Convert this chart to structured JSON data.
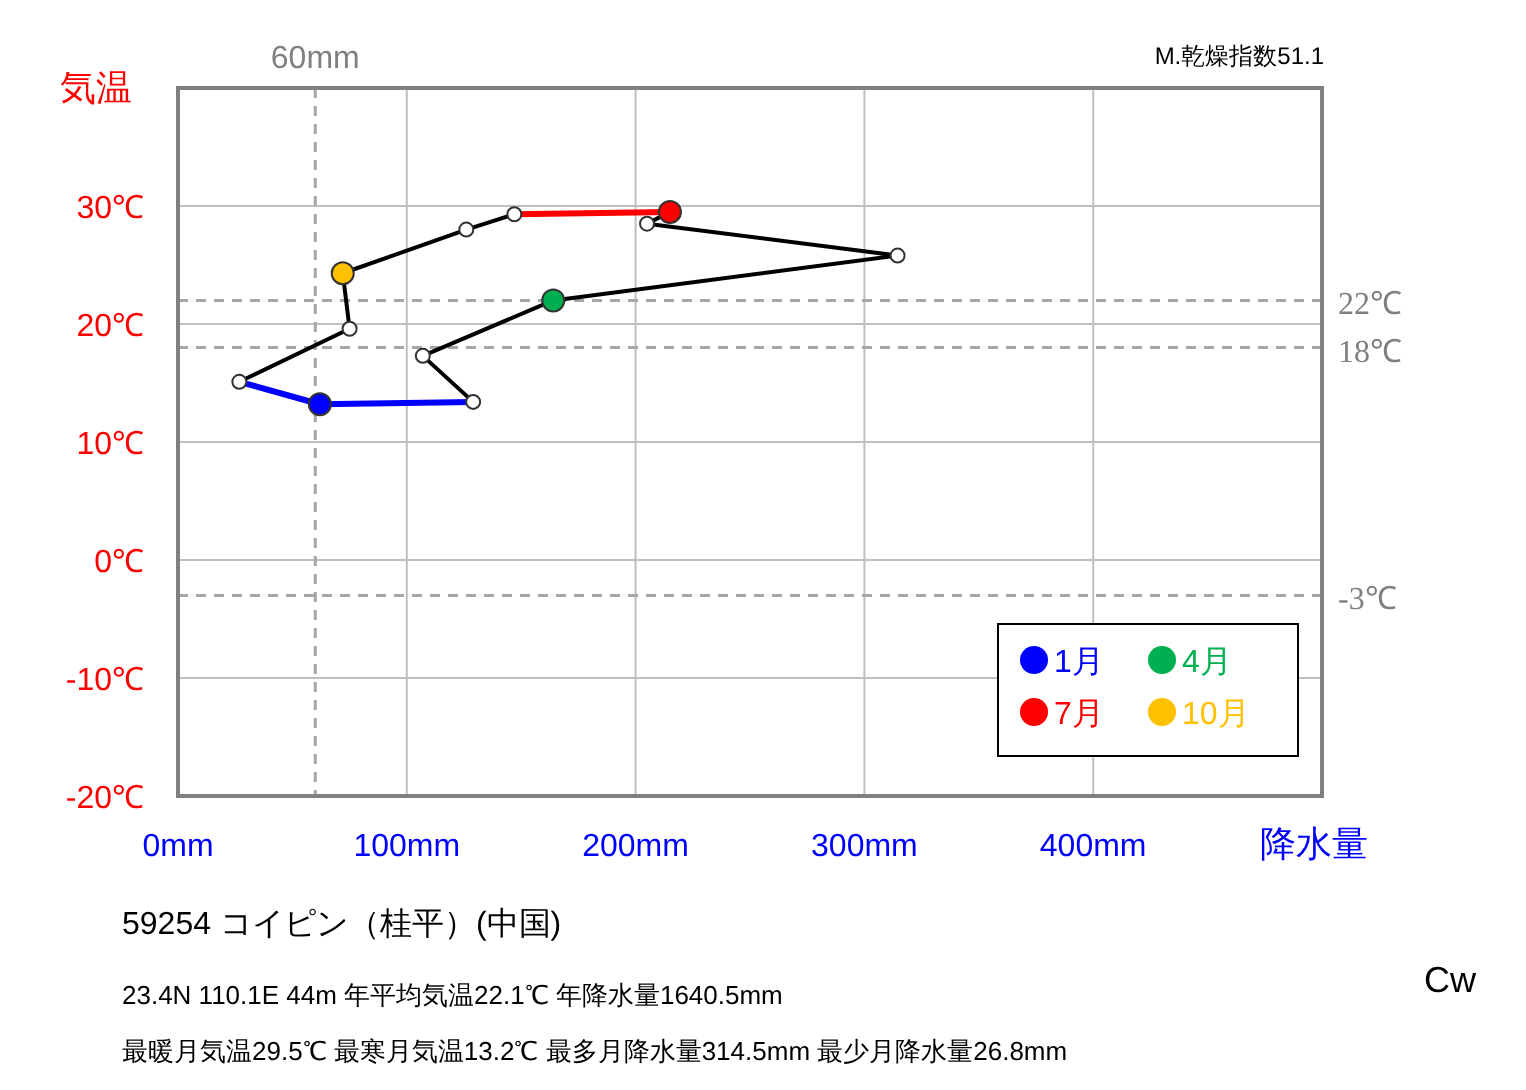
{
  "chart_data": {
    "type": "line",
    "xlabel": "降水量",
    "ylabel": "気温",
    "xlim": [
      0,
      500
    ],
    "ylim": [
      -20,
      40
    ],
    "xticks": [
      {
        "value": 0,
        "label": "0mm"
      },
      {
        "value": 100,
        "label": "100mm"
      },
      {
        "value": 200,
        "label": "200mm"
      },
      {
        "value": 300,
        "label": "300mm"
      },
      {
        "value": 400,
        "label": "400mm"
      },
      {
        "value": 500,
        "label": null
      }
    ],
    "yticks": [
      {
        "value": -20,
        "label": "-20℃"
      },
      {
        "value": -10,
        "label": "-10℃"
      },
      {
        "value": 0,
        "label": "0℃"
      },
      {
        "value": 10,
        "label": "10℃"
      },
      {
        "value": 20,
        "label": "20℃"
      },
      {
        "value": 30,
        "label": "30℃"
      },
      {
        "value": 40,
        "label": null
      }
    ],
    "grid": true,
    "legend": "bottom right",
    "ref_lines": [
      {
        "axis": "x",
        "value": 60,
        "label": "60mm",
        "color": "#a6a6a6",
        "line_style": "dashed"
      },
      {
        "axis": "y",
        "value": 22,
        "label": "22℃",
        "color": "#a6a6a6",
        "line_style": "dashed"
      },
      {
        "axis": "y",
        "value": 18,
        "label": "18℃",
        "color": "#a6a6a6",
        "line_style": "dashed"
      },
      {
        "axis": "y",
        "value": -3,
        "label": "-3℃",
        "color": "#a6a6a6",
        "line_style": "dashed"
      }
    ],
    "series": [
      {
        "color": "#000000",
        "marker": "none",
        "x": [
          129,
          107,
          164,
          314.5,
          205,
          215
        ],
        "values": [
          13.4,
          17.3,
          22.0,
          25.8,
          28.5,
          29.5
        ]
      },
      {
        "color": "#000000",
        "marker": "none",
        "x": [
          147,
          126,
          72,
          75,
          26.8
        ],
        "values": [
          29.3,
          28.0,
          24.3,
          19.6,
          15.1
        ]
      },
      {
        "color": "#0000ff",
        "marker": "none",
        "x": [
          26.8,
          62,
          129
        ],
        "values": [
          15.1,
          13.2,
          13.4
        ]
      },
      {
        "color": "#ff0000",
        "marker": "none",
        "x": [
          147,
          215
        ],
        "values": [
          29.3,
          29.5
        ]
      },
      {
        "type": "scatter",
        "color": "#ffffff",
        "marker": "circle",
        "x": [
          129,
          107,
          314.5,
          205,
          147,
          126,
          75,
          26.8
        ],
        "values": [
          13.4,
          17.3,
          25.8,
          28.5,
          29.3,
          28.0,
          19.6,
          15.1
        ]
      },
      {
        "type": "scatter",
        "name": "1月",
        "color": "#0000ff",
        "marker": "circle",
        "x": [
          62
        ],
        "values": [
          13.2
        ]
      },
      {
        "type": "scatter",
        "name": "4月",
        "color": "#00b050",
        "marker": "circle",
        "x": [
          164
        ],
        "values": [
          22.0
        ]
      },
      {
        "type": "scatter",
        "name": "7月",
        "color": "#ff0000",
        "marker": "circle",
        "x": [
          215
        ],
        "values": [
          29.5
        ]
      },
      {
        "type": "scatter",
        "name": "10月",
        "color": "#ffc000",
        "marker": "circle",
        "x": [
          72
        ],
        "values": [
          24.3
        ]
      }
    ],
    "annotations": [
      "M.乾燥指数51.1",
      "59254  コイピン（桂平）(中国)",
      "23.4N  110.1E 44m  年平均気温22.1℃ 年降水量1640.5mm",
      "最暖月気温29.5℃ 最寒月気温13.2℃ 最多月降水量314.5mm 最少月降水量26.8mm",
      "Cw"
    ]
  }
}
